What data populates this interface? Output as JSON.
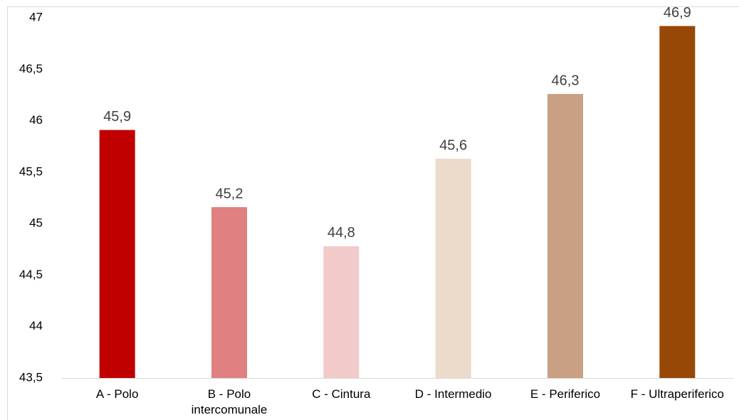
{
  "chart_data": {
    "type": "bar",
    "categories": [
      "A - Polo",
      "B - Polo intercomunale",
      "C - Cintura",
      "D - Intermedio",
      "E - Periferico",
      "F - Ultraperiferico"
    ],
    "values": [
      45.91,
      45.16,
      44.78,
      45.63,
      46.26,
      46.92
    ],
    "value_labels": [
      "45,9",
      "45,2",
      "44,8",
      "45,6",
      "46,3",
      "46,9"
    ],
    "colors": [
      "#c00000",
      "#e08080",
      "#f2caca",
      "#ecdacb",
      "#c9a083",
      "#974706"
    ],
    "ylim": [
      43.5,
      47
    ],
    "yticks": [
      {
        "value": 43.5,
        "label": "43,5"
      },
      44,
      {
        "value": 44.5,
        "label": "44,5"
      },
      45,
      {
        "value": 45.5,
        "label": "45,5"
      },
      46,
      {
        "value": 46.5,
        "label": "46,5"
      },
      47
    ],
    "grid": false
  }
}
